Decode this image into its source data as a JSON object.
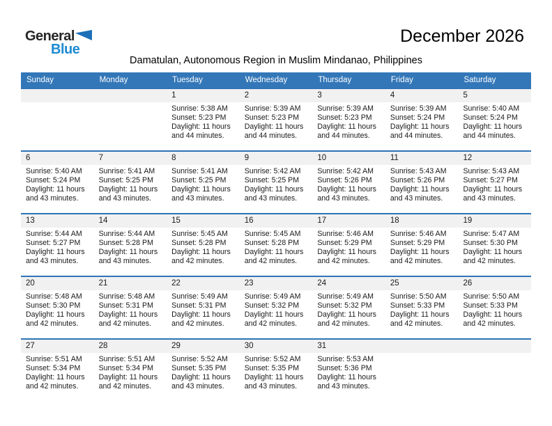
{
  "logo": {
    "general": "General",
    "blue": "Blue"
  },
  "title": "December 2026",
  "subtitle": "Damatulan, Autonomous Region in Muslim Mindanao, Philippines",
  "weekdays": [
    "Sunday",
    "Monday",
    "Tuesday",
    "Wednesday",
    "Thursday",
    "Friday",
    "Saturday"
  ],
  "colors": {
    "header_blue": "#3377B8",
    "week_line_blue": "#2E74B5",
    "number_band_gray": "#F1F1F1",
    "logo_triangle_blue": "#1C70B8",
    "logo_text_blue": "#1E8BD1"
  },
  "weeks": [
    [
      {},
      {},
      {
        "day": "1",
        "sunrise": "Sunrise: 5:38 AM",
        "sunset": "Sunset: 5:23 PM",
        "daylight1": "Daylight: 11 hours",
        "daylight2": "and 44 minutes."
      },
      {
        "day": "2",
        "sunrise": "Sunrise: 5:39 AM",
        "sunset": "Sunset: 5:23 PM",
        "daylight1": "Daylight: 11 hours",
        "daylight2": "and 44 minutes."
      },
      {
        "day": "3",
        "sunrise": "Sunrise: 5:39 AM",
        "sunset": "Sunset: 5:23 PM",
        "daylight1": "Daylight: 11 hours",
        "daylight2": "and 44 minutes."
      },
      {
        "day": "4",
        "sunrise": "Sunrise: 5:39 AM",
        "sunset": "Sunset: 5:24 PM",
        "daylight1": "Daylight: 11 hours",
        "daylight2": "and 44 minutes."
      },
      {
        "day": "5",
        "sunrise": "Sunrise: 5:40 AM",
        "sunset": "Sunset: 5:24 PM",
        "daylight1": "Daylight: 11 hours",
        "daylight2": "and 44 minutes."
      }
    ],
    [
      {
        "day": "6",
        "sunrise": "Sunrise: 5:40 AM",
        "sunset": "Sunset: 5:24 PM",
        "daylight1": "Daylight: 11 hours",
        "daylight2": "and 43 minutes."
      },
      {
        "day": "7",
        "sunrise": "Sunrise: 5:41 AM",
        "sunset": "Sunset: 5:25 PM",
        "daylight1": "Daylight: 11 hours",
        "daylight2": "and 43 minutes."
      },
      {
        "day": "8",
        "sunrise": "Sunrise: 5:41 AM",
        "sunset": "Sunset: 5:25 PM",
        "daylight1": "Daylight: 11 hours",
        "daylight2": "and 43 minutes."
      },
      {
        "day": "9",
        "sunrise": "Sunrise: 5:42 AM",
        "sunset": "Sunset: 5:25 PM",
        "daylight1": "Daylight: 11 hours",
        "daylight2": "and 43 minutes."
      },
      {
        "day": "10",
        "sunrise": "Sunrise: 5:42 AM",
        "sunset": "Sunset: 5:26 PM",
        "daylight1": "Daylight: 11 hours",
        "daylight2": "and 43 minutes."
      },
      {
        "day": "11",
        "sunrise": "Sunrise: 5:43 AM",
        "sunset": "Sunset: 5:26 PM",
        "daylight1": "Daylight: 11 hours",
        "daylight2": "and 43 minutes."
      },
      {
        "day": "12",
        "sunrise": "Sunrise: 5:43 AM",
        "sunset": "Sunset: 5:27 PM",
        "daylight1": "Daylight: 11 hours",
        "daylight2": "and 43 minutes."
      }
    ],
    [
      {
        "day": "13",
        "sunrise": "Sunrise: 5:44 AM",
        "sunset": "Sunset: 5:27 PM",
        "daylight1": "Daylight: 11 hours",
        "daylight2": "and 43 minutes."
      },
      {
        "day": "14",
        "sunrise": "Sunrise: 5:44 AM",
        "sunset": "Sunset: 5:28 PM",
        "daylight1": "Daylight: 11 hours",
        "daylight2": "and 43 minutes."
      },
      {
        "day": "15",
        "sunrise": "Sunrise: 5:45 AM",
        "sunset": "Sunset: 5:28 PM",
        "daylight1": "Daylight: 11 hours",
        "daylight2": "and 42 minutes."
      },
      {
        "day": "16",
        "sunrise": "Sunrise: 5:45 AM",
        "sunset": "Sunset: 5:28 PM",
        "daylight1": "Daylight: 11 hours",
        "daylight2": "and 42 minutes."
      },
      {
        "day": "17",
        "sunrise": "Sunrise: 5:46 AM",
        "sunset": "Sunset: 5:29 PM",
        "daylight1": "Daylight: 11 hours",
        "daylight2": "and 42 minutes."
      },
      {
        "day": "18",
        "sunrise": "Sunrise: 5:46 AM",
        "sunset": "Sunset: 5:29 PM",
        "daylight1": "Daylight: 11 hours",
        "daylight2": "and 42 minutes."
      },
      {
        "day": "19",
        "sunrise": "Sunrise: 5:47 AM",
        "sunset": "Sunset: 5:30 PM",
        "daylight1": "Daylight: 11 hours",
        "daylight2": "and 42 minutes."
      }
    ],
    [
      {
        "day": "20",
        "sunrise": "Sunrise: 5:48 AM",
        "sunset": "Sunset: 5:30 PM",
        "daylight1": "Daylight: 11 hours",
        "daylight2": "and 42 minutes."
      },
      {
        "day": "21",
        "sunrise": "Sunrise: 5:48 AM",
        "sunset": "Sunset: 5:31 PM",
        "daylight1": "Daylight: 11 hours",
        "daylight2": "and 42 minutes."
      },
      {
        "day": "22",
        "sunrise": "Sunrise: 5:49 AM",
        "sunset": "Sunset: 5:31 PM",
        "daylight1": "Daylight: 11 hours",
        "daylight2": "and 42 minutes."
      },
      {
        "day": "23",
        "sunrise": "Sunrise: 5:49 AM",
        "sunset": "Sunset: 5:32 PM",
        "daylight1": "Daylight: 11 hours",
        "daylight2": "and 42 minutes."
      },
      {
        "day": "24",
        "sunrise": "Sunrise: 5:49 AM",
        "sunset": "Sunset: 5:32 PM",
        "daylight1": "Daylight: 11 hours",
        "daylight2": "and 42 minutes."
      },
      {
        "day": "25",
        "sunrise": "Sunrise: 5:50 AM",
        "sunset": "Sunset: 5:33 PM",
        "daylight1": "Daylight: 11 hours",
        "daylight2": "and 42 minutes."
      },
      {
        "day": "26",
        "sunrise": "Sunrise: 5:50 AM",
        "sunset": "Sunset: 5:33 PM",
        "daylight1": "Daylight: 11 hours",
        "daylight2": "and 42 minutes."
      }
    ],
    [
      {
        "day": "27",
        "sunrise": "Sunrise: 5:51 AM",
        "sunset": "Sunset: 5:34 PM",
        "daylight1": "Daylight: 11 hours",
        "daylight2": "and 42 minutes."
      },
      {
        "day": "28",
        "sunrise": "Sunrise: 5:51 AM",
        "sunset": "Sunset: 5:34 PM",
        "daylight1": "Daylight: 11 hours",
        "daylight2": "and 42 minutes."
      },
      {
        "day": "29",
        "sunrise": "Sunrise: 5:52 AM",
        "sunset": "Sunset: 5:35 PM",
        "daylight1": "Daylight: 11 hours",
        "daylight2": "and 43 minutes."
      },
      {
        "day": "30",
        "sunrise": "Sunrise: 5:52 AM",
        "sunset": "Sunset: 5:35 PM",
        "daylight1": "Daylight: 11 hours",
        "daylight2": "and 43 minutes."
      },
      {
        "day": "31",
        "sunrise": "Sunrise: 5:53 AM",
        "sunset": "Sunset: 5:36 PM",
        "daylight1": "Daylight: 11 hours",
        "daylight2": "and 43 minutes."
      },
      {},
      {}
    ]
  ]
}
